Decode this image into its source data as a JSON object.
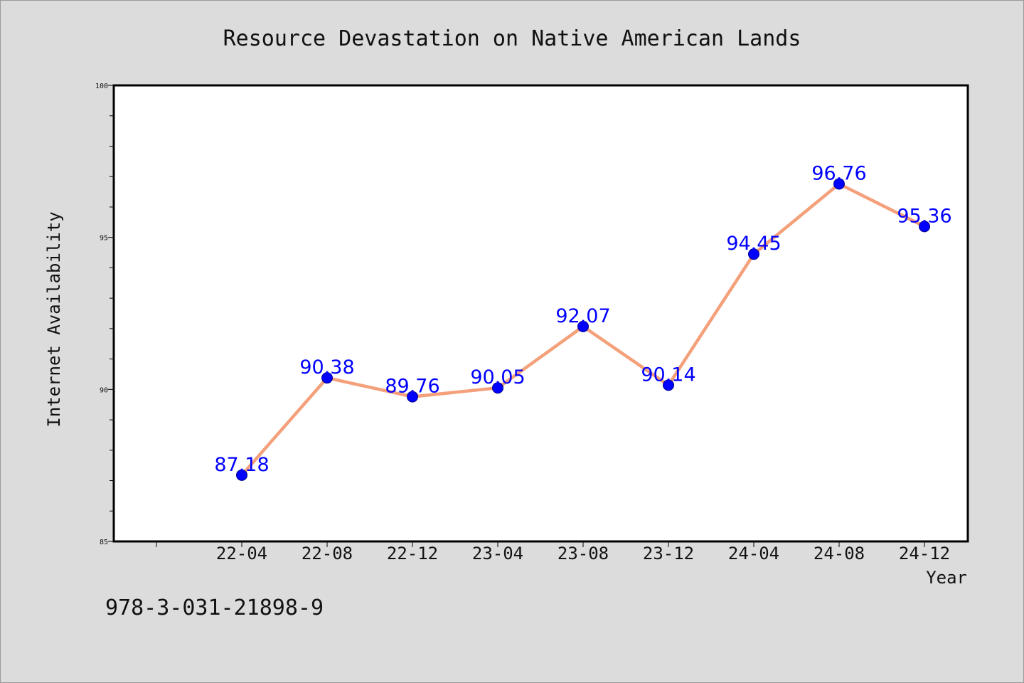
{
  "chart_data": {
    "type": "line",
    "title": "Resource Devastation on Native American Lands",
    "xlabel": "Year",
    "ylabel": "Internet Availability",
    "categories": [
      "22-04",
      "22-08",
      "22-12",
      "23-04",
      "23-08",
      "23-12",
      "24-04",
      "24-08",
      "24-12"
    ],
    "values": [
      87.18,
      90.38,
      89.76,
      90.05,
      92.07,
      90.14,
      94.45,
      96.76,
      95.36
    ],
    "data_labels": [
      "87.18",
      "90.38",
      "89.76",
      "90.05",
      "92.07",
      "90.14",
      "94.45",
      "96.76",
      "95.36"
    ],
    "ylim": [
      85,
      100
    ],
    "y_ticks": [
      85,
      90,
      95,
      100
    ],
    "grid": false,
    "line_color": "#f4a07a",
    "marker_color": "#0000ff",
    "label_color": "#0000ff"
  },
  "footer": {
    "code": "978-3-031-21898-9"
  }
}
